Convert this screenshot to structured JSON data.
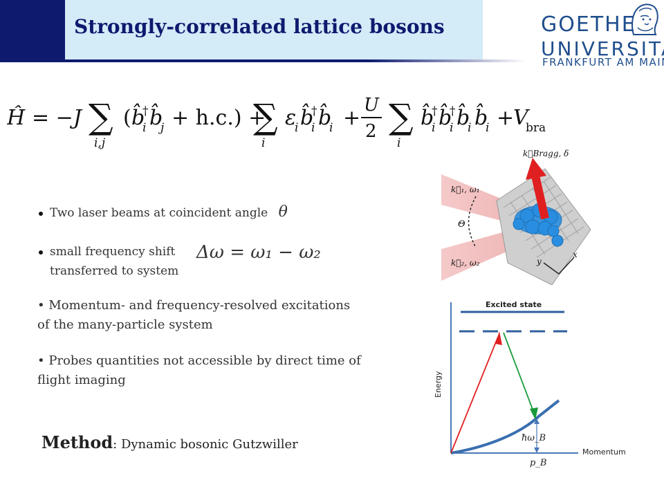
{
  "header": {
    "title": "Strongly-correlated lattice bosons",
    "logo": {
      "line1": "GOETHE",
      "line2": "UNIVERSITÄT",
      "line3": "FRANKFURT AM MAIN"
    }
  },
  "formula": {
    "hamiltonian": "Ĥ = −J Σ_{i,j} (b̂†_i b̂_j + h.c.) + Σ_i ε_i b̂†_i b̂_i + U/2 Σ_i b̂†_i b̂†_i b̂_i b̂_i + V_bra"
  },
  "bullets": [
    {
      "text": "Two laser beams at coincident angle",
      "math": "θ"
    },
    {
      "text": "small frequency shift",
      "text2": "transferred to system",
      "math": "Δω = ω₁ − ω₂"
    }
  ],
  "paragraphs": [
    {
      "line1": "• Momentum- and frequency-resolved excitations",
      "line2": "of  the many-particle system"
    },
    {
      "line1": "• Probes quantities not accessible by direct time of",
      "line2": "flight imaging"
    }
  ],
  "method": {
    "label": "Method",
    "text": ": Dynamic bosonic Gutzwiller"
  },
  "lattice_figure": {
    "k_bragg": "k⃗Bragg, δ",
    "k1": "k⃗₁, ω₁",
    "k2": "k⃗₂, ω₂",
    "theta": "Θ",
    "axis_y": "y",
    "axis_x": "x"
  },
  "energy_diagram": {
    "excited_state": "Excited state",
    "energy_label": "Energy",
    "momentum_label": "Momentum",
    "hbar_omega": "ħω_B",
    "p_b": "p_B"
  },
  "colors": {
    "navy": "#0d1a6e",
    "light_blue": "#d4ebf8",
    "logo_blue": "#1f4e8c",
    "arrow_red": "#e02020",
    "arrow_green": "#1a9a3a",
    "curve_blue": "#3a6fb0"
  }
}
